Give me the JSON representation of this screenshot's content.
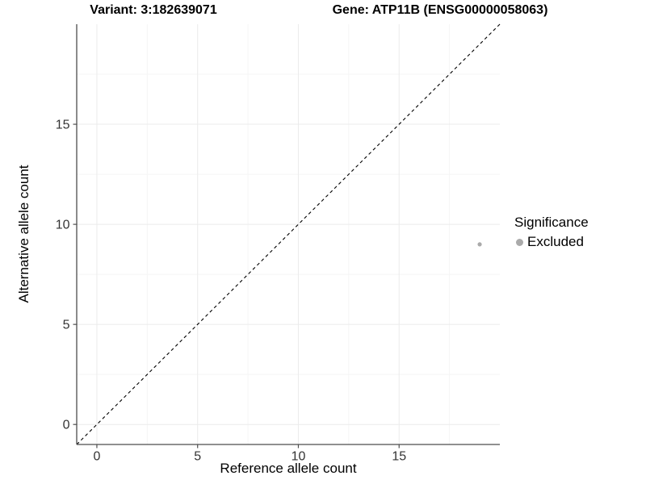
{
  "header": {
    "title_left": "Variant: 3:182639071",
    "title_right": "Gene: ATP11B (ENSG00000058063)"
  },
  "chart_data": {
    "type": "scatter",
    "title": "Variant: 3:182639071   Gene: ATP11B (ENSG00000058063)",
    "xlabel": "Reference allele count",
    "ylabel": "Alternative allele count",
    "xlim": [
      -1,
      20
    ],
    "ylim": [
      -1,
      20
    ],
    "xticks": [
      0,
      5,
      10,
      15
    ],
    "yticks": [
      0,
      5,
      10,
      15
    ],
    "minor_xticks": [
      2.5,
      7.5,
      12.5,
      17.5
    ],
    "minor_yticks": [
      2.5,
      7.5,
      12.5,
      17.5
    ],
    "grid": true,
    "series": [
      {
        "name": "Excluded",
        "color": "#aaaaaa",
        "marker": "circle",
        "points": [
          {
            "x": 19,
            "y": 9
          }
        ]
      }
    ],
    "reference_line": {
      "type": "identity",
      "equation": "y = x",
      "style": "dashed",
      "color": "#000000"
    },
    "legend": {
      "title": "Significance",
      "position": "right",
      "entries": [
        {
          "label": "Excluded",
          "color": "#aaaaaa",
          "marker": "circle"
        }
      ]
    },
    "colors": {
      "panel_background": "#ffffff",
      "grid_major": "#ebebeb",
      "grid_minor": "#f5f5f5",
      "axis_line": "#4d4d4d",
      "tick_label": "#333333",
      "point": "#aaaaaa"
    }
  }
}
